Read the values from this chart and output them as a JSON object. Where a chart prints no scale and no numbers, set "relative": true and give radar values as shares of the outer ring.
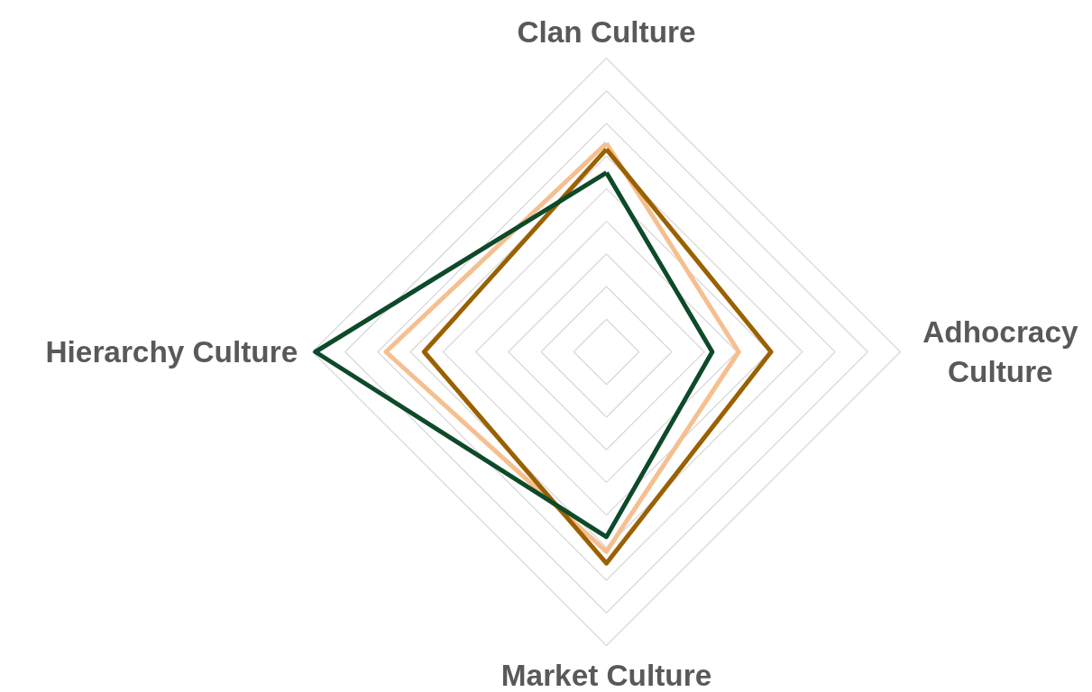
{
  "chart_data": {
    "type": "radar",
    "relative": true,
    "grid": true,
    "categories": [
      "Clan Culture",
      "Adhocracy Culture",
      "Market Culture",
      "Hierarchy Culture"
    ],
    "series": [
      {
        "color": "#f5bf8f",
        "values": [
          0.71,
          0.45,
          0.68,
          0.75
        ]
      },
      {
        "color": "#9a6100",
        "values": [
          0.69,
          0.56,
          0.72,
          0.62
        ]
      },
      {
        "color": "#0d4a2a",
        "values": [
          0.61,
          0.36,
          0.63,
          0.99
        ]
      }
    ]
  }
}
